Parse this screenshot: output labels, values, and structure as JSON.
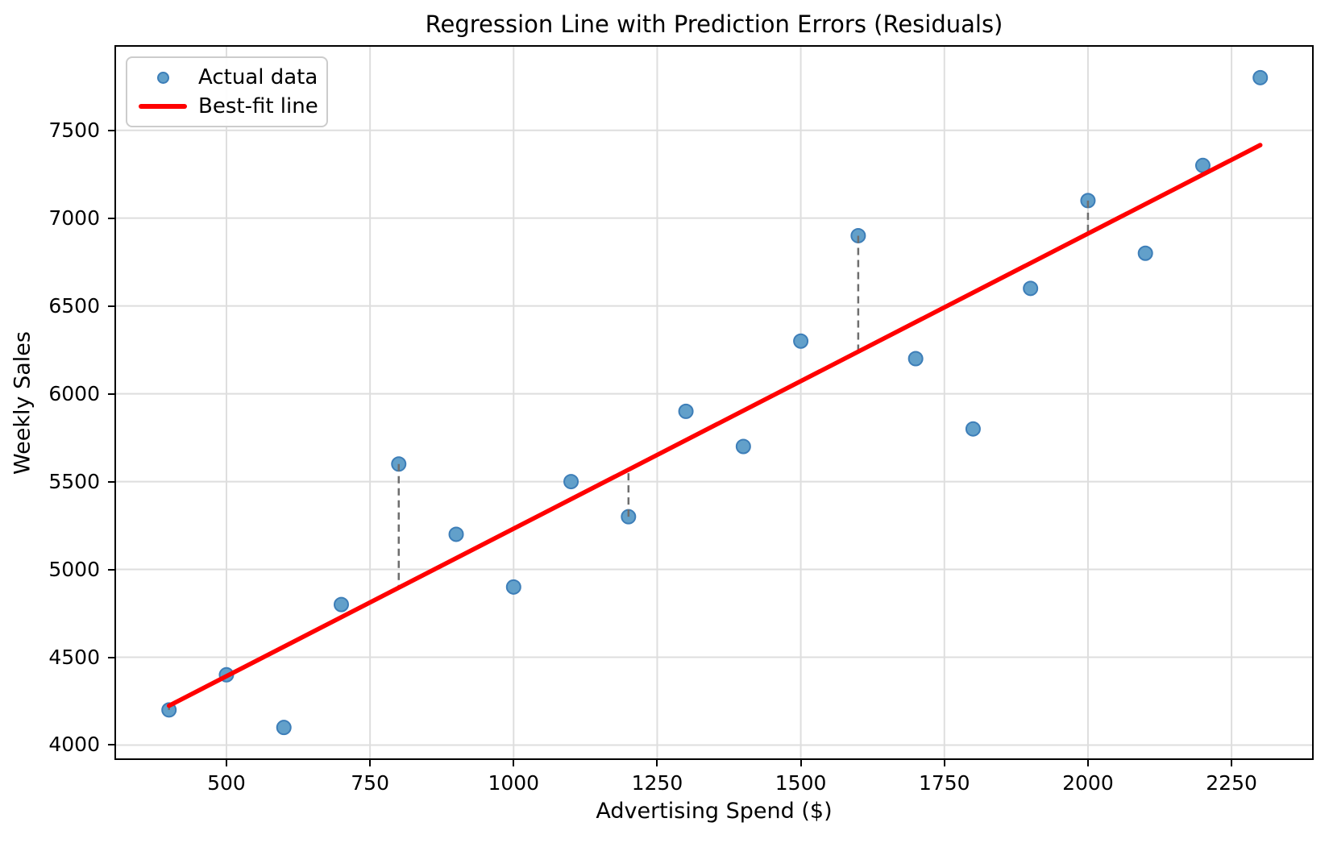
{
  "figure": {
    "title": "Regression Line with Prediction Errors (Residuals)",
    "xlabel": "Advertising Spend ($)",
    "ylabel": "Weekly Sales"
  },
  "chart_data": {
    "type": "scatter",
    "title": "Regression Line with Prediction Errors (Residuals)",
    "xlabel": "Advertising Spend ($)",
    "ylabel": "Weekly Sales",
    "series": [
      {
        "name": "Actual data",
        "type": "scatter",
        "x": [
          400,
          500,
          600,
          700,
          800,
          900,
          1000,
          1100,
          1200,
          1300,
          1400,
          1500,
          1600,
          1700,
          1800,
          1900,
          2000,
          2100,
          2200,
          2300
        ],
        "y": [
          4200,
          4400,
          4100,
          4800,
          5600,
          5200,
          4900,
          5500,
          5300,
          5900,
          5700,
          6300,
          6900,
          6200,
          5800,
          6600,
          7100,
          6800,
          7300,
          7800
        ]
      },
      {
        "name": "Best-fit line",
        "type": "line",
        "slope": 1.68,
        "intercept": 3552,
        "x_range": [
          400,
          2300
        ],
        "y_endpoints": [
          4224,
          7416
        ]
      }
    ],
    "residuals": {
      "point_indices": [
        0,
        4,
        8,
        12,
        16
      ],
      "style": "dashed"
    },
    "x_ticks": [
      500,
      750,
      1000,
      1250,
      1500,
      1750,
      2000,
      2250
    ],
    "y_ticks": [
      4000,
      4500,
      5000,
      5500,
      6000,
      6500,
      7000,
      7500
    ],
    "xlim": [
      305,
      2393
    ],
    "ylim": [
      3915,
      7985
    ],
    "grid": true,
    "legend_position": "upper left",
    "colors": {
      "marker_fill": "#62a0ca",
      "marker_edge": "#3d7eb8",
      "fit_line": "#ff0000",
      "residual": "#6e6e6e",
      "grid": "#dedede",
      "spine": "#000000"
    }
  }
}
